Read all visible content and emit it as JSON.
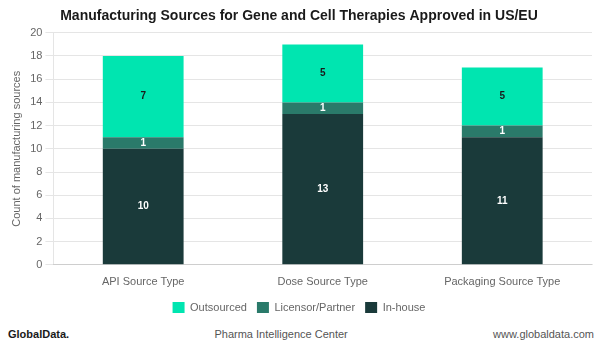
{
  "chart_data": {
    "type": "bar",
    "title": "Manufacturing Sources for Gene and Cell Therapies Approved in US/EU",
    "categories": [
      "API Source Type",
      "Dose Source Type",
      "Packaging Source Type"
    ],
    "series": [
      {
        "name": "In-house",
        "color": "#1a3a3a",
        "values": [
          10,
          13,
          11
        ]
      },
      {
        "name": "Licensor/Partner",
        "color": "#2a7a6a",
        "values": [
          1,
          1,
          1
        ]
      },
      {
        "name": "Outsourced",
        "color": "#00e5b0",
        "values": [
          7,
          5,
          5
        ]
      }
    ],
    "y_label": "Count of manufacturing sources",
    "ylim": [
      0,
      20
    ],
    "yticks": [
      0,
      2,
      4,
      6,
      8,
      10,
      12,
      14,
      16,
      18,
      20
    ],
    "stacked": true,
    "grid": true,
    "legend": "bottom",
    "data_labels": true,
    "annotations": [
      "GlobalData.",
      "Pharma Intelligence Center",
      "www.globaldata.com"
    ]
  }
}
